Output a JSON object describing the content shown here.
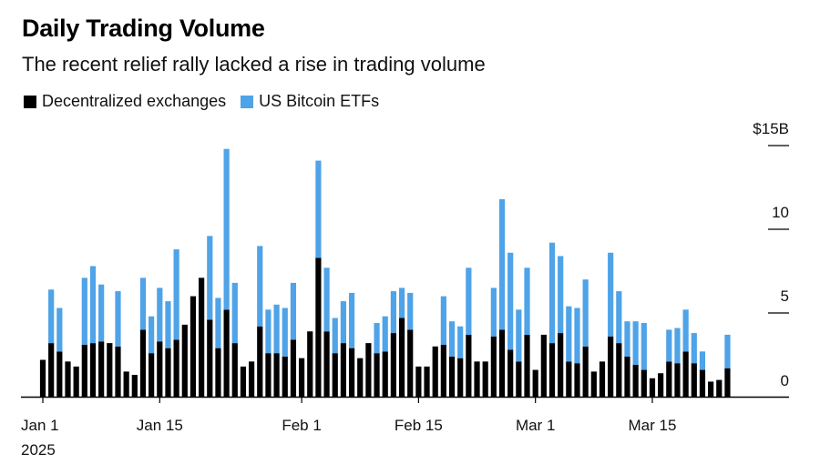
{
  "chart_data": {
    "type": "bar",
    "stacked": true,
    "title": "Daily Trading Volume",
    "subtitle": "The recent relief rally lacked a rise in trading volume",
    "xlabel": "",
    "ylabel": "",
    "unit": "$B",
    "ylim": [
      0,
      15
    ],
    "yticks": [
      0,
      5,
      10,
      15
    ],
    "ytick_labels": [
      "0",
      "5",
      "10",
      "$15B"
    ],
    "y_axis_position": "right",
    "grid": false,
    "legend_position": "top-left",
    "x_start": "2025-01-01",
    "xticks": [
      {
        "day_index": 0,
        "label": "Jan 1",
        "sublabel": "2025"
      },
      {
        "day_index": 14,
        "label": "Jan 15",
        "sublabel": ""
      },
      {
        "day_index": 31,
        "label": "Feb 1",
        "sublabel": ""
      },
      {
        "day_index": 45,
        "label": "Feb 15",
        "sublabel": ""
      },
      {
        "day_index": 59,
        "label": "Mar 1",
        "sublabel": ""
      },
      {
        "day_index": 73,
        "label": "Mar 15",
        "sublabel": ""
      }
    ],
    "categories": [
      "Jan 1",
      "Jan 2",
      "Jan 3",
      "Jan 4",
      "Jan 5",
      "Jan 6",
      "Jan 7",
      "Jan 8",
      "Jan 9",
      "Jan 10",
      "Jan 11",
      "Jan 12",
      "Jan 13",
      "Jan 14",
      "Jan 15",
      "Jan 16",
      "Jan 17",
      "Jan 18",
      "Jan 19",
      "Jan 20",
      "Jan 21",
      "Jan 22",
      "Jan 23",
      "Jan 24",
      "Jan 25",
      "Jan 26",
      "Jan 27",
      "Jan 28",
      "Jan 29",
      "Jan 30",
      "Jan 31",
      "Feb 1",
      "Feb 2",
      "Feb 3",
      "Feb 4",
      "Feb 5",
      "Feb 6",
      "Feb 7",
      "Feb 8",
      "Feb 9",
      "Feb 10",
      "Feb 11",
      "Feb 12",
      "Feb 13",
      "Feb 14",
      "Feb 15",
      "Feb 16",
      "Feb 17",
      "Feb 18",
      "Feb 19",
      "Feb 20",
      "Feb 21",
      "Feb 22",
      "Feb 23",
      "Feb 24",
      "Feb 25",
      "Feb 26",
      "Feb 27",
      "Feb 28",
      "Mar 1",
      "Mar 2",
      "Mar 3",
      "Mar 4",
      "Mar 5",
      "Mar 6",
      "Mar 7",
      "Mar 8",
      "Mar 9",
      "Mar 10",
      "Mar 11",
      "Mar 12",
      "Mar 13",
      "Mar 14",
      "Mar 15",
      "Mar 16",
      "Mar 17",
      "Mar 18",
      "Mar 19",
      "Mar 20",
      "Mar 21",
      "Mar 22",
      "Mar 23",
      "Mar 24"
    ],
    "series": [
      {
        "name": "Decentralized exchanges",
        "color": "#000000",
        "values": [
          2.2,
          3.2,
          2.7,
          2.1,
          1.8,
          3.1,
          3.2,
          3.3,
          3.2,
          3.0,
          1.5,
          1.3,
          4.0,
          2.6,
          3.3,
          2.9,
          3.4,
          4.3,
          6.0,
          7.1,
          4.6,
          2.9,
          5.2,
          3.2,
          1.8,
          2.1,
          4.2,
          2.6,
          2.6,
          2.4,
          3.4,
          2.3,
          3.9,
          8.3,
          3.9,
          2.6,
          3.2,
          2.9,
          2.3,
          3.2,
          2.6,
          2.7,
          3.8,
          4.7,
          4.0,
          1.8,
          1.8,
          3.0,
          3.1,
          2.4,
          2.3,
          3.7,
          2.1,
          2.1,
          3.6,
          4.0,
          2.8,
          2.1,
          3.7,
          1.6,
          3.7,
          3.2,
          3.8,
          2.1,
          2.0,
          3.0,
          1.5,
          2.1,
          3.6,
          3.2,
          2.4,
          1.9,
          1.6,
          1.1,
          1.4,
          2.1,
          2.0,
          2.7,
          2.0,
          1.6,
          0.9,
          1.0,
          1.7
        ]
      },
      {
        "name": "US Bitcoin ETFs",
        "color": "#4fa3e8",
        "values": [
          0,
          3.2,
          2.6,
          0,
          0,
          4.0,
          4.6,
          3.4,
          0,
          3.3,
          0,
          0,
          3.1,
          2.2,
          3.2,
          2.8,
          5.4,
          0,
          0,
          0,
          5.0,
          3.0,
          9.6,
          3.6,
          0,
          0,
          4.8,
          2.6,
          2.9,
          2.9,
          3.4,
          0,
          0,
          5.8,
          3.8,
          2.1,
          2.5,
          3.3,
          0,
          0,
          1.8,
          2.1,
          2.5,
          1.8,
          2.2,
          0,
          0,
          0,
          2.9,
          2.1,
          1.9,
          4.0,
          0,
          0,
          2.9,
          7.8,
          5.8,
          3.1,
          4.0,
          0,
          0,
          6.0,
          4.6,
          3.3,
          3.3,
          4.0,
          0,
          0,
          5.0,
          3.1,
          2.1,
          2.6,
          2.8,
          0,
          0,
          1.9,
          2.1,
          2.5,
          1.8,
          1.1,
          0,
          0,
          2.0
        ]
      }
    ]
  }
}
